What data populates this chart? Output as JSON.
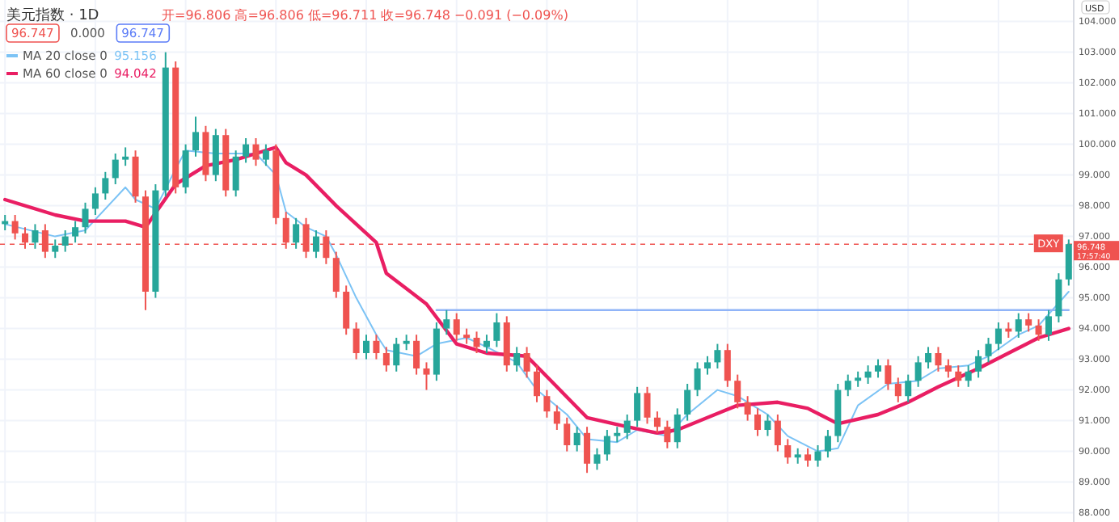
{
  "chart_data": {
    "type": "candlestick",
    "title": "美元指数 · 1D",
    "subtitle": "开=96.806 高=96.806 低=96.711 收=96.748 −0.091 (−0.09%)",
    "categories": [
      null,
      null,
      null,
      null,
      null,
      null,
      null,
      null,
      null,
      null,
      null,
      null,
      null,
      null,
      null,
      null,
      null,
      null,
      null,
      null,
      null,
      null,
      null,
      null,
      null,
      null,
      null,
      null,
      null,
      null,
      null,
      null,
      null,
      null,
      null,
      null,
      null,
      null,
      null,
      null,
      null,
      null,
      null,
      null,
      null,
      null,
      null,
      null,
      null,
      null,
      null,
      null,
      null,
      null,
      null,
      null,
      null,
      null,
      null,
      null,
      null,
      null,
      null,
      null,
      null,
      null,
      null,
      null,
      null,
      null,
      null,
      null,
      null,
      null,
      null,
      null,
      null,
      null,
      null,
      null,
      null,
      null,
      null,
      null,
      null,
      null,
      null,
      null,
      null,
      null,
      null,
      null,
      null,
      null,
      null,
      null,
      null,
      null,
      null,
      null,
      null,
      null,
      null,
      null,
      null,
      null,
      null
    ],
    "ohlc": [
      [
        97.4,
        97.7,
        97.2,
        97.5
      ],
      [
        97.5,
        97.7,
        96.9,
        97.1
      ],
      [
        97.1,
        97.3,
        96.6,
        96.8
      ],
      [
        96.8,
        97.4,
        96.6,
        97.2
      ],
      [
        97.2,
        97.4,
        96.3,
        96.5
      ],
      [
        96.5,
        96.9,
        96.3,
        96.7
      ],
      [
        96.7,
        97.2,
        96.5,
        97.0
      ],
      [
        97.0,
        97.5,
        96.8,
        97.3
      ],
      [
        97.3,
        98.1,
        97.1,
        97.9
      ],
      [
        97.9,
        98.6,
        97.7,
        98.4
      ],
      [
        98.4,
        99.1,
        98.2,
        98.9
      ],
      [
        98.9,
        99.7,
        98.7,
        99.5
      ],
      [
        99.5,
        99.9,
        99.3,
        99.6
      ],
      [
        99.6,
        99.8,
        98.1,
        98.3
      ],
      [
        98.3,
        98.5,
        94.6,
        95.2
      ],
      [
        95.2,
        98.7,
        95.0,
        98.5
      ],
      [
        98.5,
        103.0,
        98.3,
        102.5
      ],
      [
        102.5,
        102.7,
        98.4,
        98.6
      ],
      [
        98.6,
        100.0,
        98.4,
        99.8
      ],
      [
        99.8,
        100.9,
        99.6,
        100.4
      ],
      [
        100.4,
        100.6,
        98.8,
        99.0
      ],
      [
        99.0,
        100.5,
        98.8,
        100.3
      ],
      [
        100.3,
        100.5,
        98.3,
        98.5
      ],
      [
        98.5,
        99.8,
        98.3,
        99.6
      ],
      [
        99.6,
        100.2,
        99.4,
        100.0
      ],
      [
        100.0,
        100.2,
        99.3,
        99.5
      ],
      [
        99.5,
        100.0,
        99.3,
        99.8
      ],
      [
        99.8,
        100.0,
        97.4,
        97.6
      ],
      [
        97.6,
        97.8,
        96.6,
        96.8
      ],
      [
        96.8,
        97.6,
        96.6,
        97.4
      ],
      [
        97.4,
        97.6,
        96.3,
        96.5
      ],
      [
        96.5,
        97.2,
        96.3,
        97.0
      ],
      [
        97.0,
        97.2,
        96.1,
        96.3
      ],
      [
        96.3,
        96.5,
        95.0,
        95.2
      ],
      [
        95.2,
        95.4,
        93.8,
        94.0
      ],
      [
        94.0,
        94.2,
        93.0,
        93.2
      ],
      [
        93.2,
        93.8,
        93.0,
        93.6
      ],
      [
        93.6,
        93.8,
        93.0,
        93.2
      ],
      [
        93.2,
        93.4,
        92.6,
        92.8
      ],
      [
        92.8,
        93.7,
        92.6,
        93.5
      ],
      [
        93.5,
        93.8,
        93.3,
        93.6
      ],
      [
        93.6,
        93.8,
        92.5,
        92.7
      ],
      [
        92.7,
        92.9,
        92.0,
        92.5
      ],
      [
        92.5,
        94.2,
        92.3,
        94.0
      ],
      [
        94.0,
        94.6,
        93.8,
        94.3
      ],
      [
        94.3,
        94.5,
        93.6,
        93.8
      ],
      [
        93.8,
        94.0,
        93.5,
        93.7
      ],
      [
        93.7,
        93.9,
        93.2,
        93.4
      ],
      [
        93.4,
        93.8,
        93.2,
        93.6
      ],
      [
        93.6,
        94.5,
        93.4,
        94.2
      ],
      [
        94.2,
        94.4,
        92.6,
        92.8
      ],
      [
        92.8,
        93.4,
        92.6,
        93.2
      ],
      [
        93.2,
        93.4,
        92.4,
        92.6
      ],
      [
        92.6,
        92.8,
        91.6,
        91.8
      ],
      [
        91.8,
        92.0,
        91.1,
        91.3
      ],
      [
        91.3,
        91.5,
        90.7,
        90.9
      ],
      [
        90.9,
        91.1,
        90.0,
        90.2
      ],
      [
        90.2,
        90.8,
        90.0,
        90.6
      ],
      [
        90.6,
        90.8,
        89.3,
        89.6
      ],
      [
        89.6,
        90.1,
        89.4,
        89.9
      ],
      [
        89.9,
        90.7,
        89.7,
        90.5
      ],
      [
        90.5,
        90.8,
        90.3,
        90.6
      ],
      [
        90.6,
        91.2,
        90.4,
        91.0
      ],
      [
        91.0,
        92.1,
        90.8,
        91.9
      ],
      [
        91.9,
        92.1,
        90.9,
        91.1
      ],
      [
        91.1,
        91.3,
        90.6,
        90.8
      ],
      [
        90.8,
        91.0,
        90.1,
        90.3
      ],
      [
        90.3,
        91.4,
        90.1,
        91.2
      ],
      [
        91.2,
        92.2,
        91.0,
        92.0
      ],
      [
        92.0,
        92.9,
        91.8,
        92.7
      ],
      [
        92.7,
        93.1,
        92.5,
        92.9
      ],
      [
        92.9,
        93.5,
        92.7,
        93.3
      ],
      [
        93.3,
        93.5,
        92.1,
        92.3
      ],
      [
        92.3,
        92.5,
        91.4,
        91.6
      ],
      [
        91.6,
        91.8,
        91.0,
        91.2
      ],
      [
        91.2,
        91.4,
        90.5,
        90.7
      ],
      [
        90.7,
        91.2,
        90.5,
        91.0
      ],
      [
        91.0,
        91.2,
        90.0,
        90.2
      ],
      [
        90.2,
        90.4,
        89.6,
        89.8
      ],
      [
        89.8,
        90.1,
        89.6,
        89.9
      ],
      [
        89.9,
        90.1,
        89.5,
        89.7
      ],
      [
        89.7,
        90.2,
        89.5,
        90.0
      ],
      [
        90.0,
        90.7,
        89.8,
        90.5
      ],
      [
        90.5,
        92.2,
        90.3,
        92.0
      ],
      [
        92.0,
        92.5,
        91.8,
        92.3
      ],
      [
        92.3,
        92.6,
        92.1,
        92.4
      ],
      [
        92.4,
        92.8,
        92.2,
        92.6
      ],
      [
        92.6,
        93.0,
        92.4,
        92.8
      ],
      [
        92.8,
        93.0,
        92.0,
        92.2
      ],
      [
        92.2,
        92.4,
        91.6,
        91.8
      ],
      [
        91.8,
        92.5,
        91.6,
        92.3
      ],
      [
        92.3,
        93.1,
        92.1,
        92.9
      ],
      [
        92.9,
        93.4,
        92.7,
        93.2
      ],
      [
        93.2,
        93.4,
        92.6,
        92.8
      ],
      [
        92.8,
        93.0,
        92.4,
        92.6
      ],
      [
        92.6,
        92.8,
        92.1,
        92.3
      ],
      [
        92.3,
        92.8,
        92.1,
        92.6
      ],
      [
        92.6,
        93.3,
        92.4,
        93.1
      ],
      [
        93.1,
        93.7,
        92.9,
        93.5
      ],
      [
        93.5,
        94.2,
        93.3,
        94.0
      ],
      [
        94.0,
        94.2,
        93.7,
        93.9
      ],
      [
        93.9,
        94.5,
        93.7,
        94.3
      ],
      [
        94.3,
        94.5,
        93.9,
        94.1
      ],
      [
        94.1,
        94.3,
        93.6,
        93.8
      ],
      [
        93.8,
        94.6,
        93.6,
        94.4
      ],
      [
        94.4,
        95.8,
        94.2,
        95.6
      ],
      [
        95.6,
        96.9,
        95.4,
        96.748
      ]
    ],
    "colors": [
      "#26a69a",
      "#ef5350",
      "#ef5350",
      "#26a69a",
      "#ef5350",
      "#26a69a",
      "#26a69a",
      "#26a69a",
      "#26a69a",
      "#26a69a",
      "#26a69a",
      "#26a69a",
      "#26a69a",
      "#ef5350",
      "#ef5350",
      "#26a69a",
      "#26a69a",
      "#ef5350",
      "#26a69a",
      "#26a69a",
      "#ef5350",
      "#26a69a",
      "#ef5350",
      "#26a69a",
      "#26a69a",
      "#ef5350",
      "#26a69a",
      "#ef5350",
      "#ef5350",
      "#26a69a",
      "#ef5350",
      "#26a69a",
      "#ef5350",
      "#ef5350",
      "#ef5350",
      "#ef5350",
      "#26a69a",
      "#ef5350",
      "#ef5350",
      "#26a69a",
      "#26a69a",
      "#ef5350",
      "#ef5350",
      "#26a69a",
      "#26a69a",
      "#ef5350",
      "#ef5350",
      "#ef5350",
      "#26a69a",
      "#26a69a",
      "#ef5350",
      "#26a69a",
      "#ef5350",
      "#ef5350",
      "#ef5350",
      "#ef5350",
      "#ef5350",
      "#26a69a",
      "#ef5350",
      "#26a69a",
      "#26a69a",
      "#26a69a",
      "#26a69a",
      "#26a69a",
      "#ef5350",
      "#ef5350",
      "#ef5350",
      "#26a69a",
      "#26a69a",
      "#26a69a",
      "#26a69a",
      "#26a69a",
      "#ef5350",
      "#ef5350",
      "#ef5350",
      "#ef5350",
      "#26a69a",
      "#ef5350",
      "#ef5350",
      "#26a69a",
      "#ef5350",
      "#26a69a",
      "#26a69a",
      "#26a69a",
      "#26a69a",
      "#26a69a",
      "#26a69a",
      "#26a69a",
      "#ef5350",
      "#ef5350",
      "#26a69a",
      "#26a69a",
      "#26a69a",
      "#ef5350",
      "#ef5350",
      "#ef5350",
      "#26a69a",
      "#26a69a",
      "#26a69a",
      "#26a69a",
      "#ef5350",
      "#26a69a",
      "#ef5350",
      "#ef5350",
      "#26a69a",
      "#26a69a",
      "#26a69a"
    ],
    "series": [
      {
        "type": "line",
        "name": "MA 20 close 0",
        "color": "#7cc3f5",
        "values": [
          97.4,
          null,
          null,
          null,
          null,
          97.0,
          null,
          null,
          97.2,
          null,
          null,
          null,
          98.6,
          98.2,
          null,
          97.9,
          null,
          99.2,
          99.8,
          null,
          null,
          99.7,
          null,
          99.7,
          null,
          99.7,
          null,
          99.0,
          97.8,
          null,
          97.3,
          null,
          97.0,
          96.4,
          null,
          95.0,
          null,
          93.8,
          93.3,
          null,
          null,
          93.1,
          null,
          93.5,
          null,
          null,
          93.7,
          null,
          93.4,
          null,
          null,
          92.9,
          null,
          92.0,
          null,
          null,
          91.2,
          null,
          90.4,
          null,
          null,
          90.3,
          null,
          90.7,
          null,
          null,
          90.5,
          null,
          91.2,
          null,
          null,
          92.0,
          null,
          91.8,
          null,
          null,
          91.2,
          null,
          90.5,
          null,
          null,
          90.0,
          null,
          90.1,
          null,
          91.5,
          null,
          null,
          92.2,
          null,
          null,
          92.3,
          null,
          92.7,
          null,
          null,
          92.8,
          null,
          93.1,
          null,
          null,
          93.8,
          null,
          94.1,
          null,
          null,
          95.2
        ]
      },
      {
        "type": "line",
        "name": "MA 60 close 0",
        "color": "#e91e63",
        "values": [
          98.2,
          null,
          null,
          null,
          null,
          97.7,
          null,
          null,
          97.5,
          null,
          null,
          null,
          97.5,
          null,
          97.3,
          null,
          null,
          98.7,
          null,
          null,
          99.3,
          null,
          null,
          99.5,
          null,
          99.7,
          null,
          99.9,
          99.4,
          null,
          99.0,
          null,
          null,
          98.0,
          null,
          null,
          null,
          96.8,
          95.8,
          null,
          null,
          null,
          94.8,
          null,
          null,
          93.5,
          null,
          null,
          93.2,
          null,
          null,
          null,
          93.1,
          null,
          null,
          92.1,
          null,
          null,
          91.1,
          null,
          null,
          null,
          90.8,
          null,
          null,
          90.6,
          null,
          90.7,
          null,
          null,
          91.1,
          null,
          null,
          91.5,
          null,
          null,
          null,
          91.6,
          null,
          null,
          91.4,
          null,
          null,
          90.9,
          null,
          null,
          null,
          91.2,
          null,
          null,
          91.6,
          null,
          null,
          92.1,
          null,
          null,
          null,
          92.7,
          null,
          null,
          93.2,
          null,
          null,
          93.7,
          null,
          null,
          94.0
        ]
      },
      {
        "type": "line",
        "color": "#90b4f8",
        "values": [
          null,
          null,
          null,
          null,
          null,
          null,
          null,
          null,
          null,
          null,
          null,
          null,
          null,
          null,
          null,
          null,
          null,
          null,
          null,
          null,
          null,
          null,
          null,
          null,
          null,
          null,
          null,
          null,
          null,
          null,
          null,
          null,
          null,
          null,
          null,
          null,
          null,
          null,
          null,
          null,
          null,
          null,
          null,
          94.6,
          null,
          null,
          null,
          null,
          null,
          null,
          null,
          null,
          null,
          null,
          null,
          null,
          null,
          null,
          null,
          null,
          null,
          null,
          null,
          null,
          null,
          null,
          null,
          null,
          null,
          null,
          null,
          null,
          null,
          null,
          null,
          null,
          null,
          null,
          null,
          null,
          null,
          null,
          null,
          null,
          null,
          null,
          null,
          null,
          null,
          null,
          null,
          null,
          null,
          null,
          null,
          null,
          null,
          null,
          null,
          null,
          null,
          null,
          null,
          null,
          null,
          null,
          94.6
        ]
      }
    ],
    "ref_lines": [
      {
        "axis": "y",
        "value": 96.748,
        "color": "#ef5350",
        "line_style": "dashed"
      }
    ],
    "ylim": [
      87.7,
      104.7
    ],
    "yticks": [
      {
        "value": 88,
        "label": "88.000"
      },
      {
        "value": 89,
        "label": "89.000"
      },
      {
        "value": 90,
        "label": "90.000"
      },
      {
        "value": 91,
        "label": "91.000"
      },
      {
        "value": 92,
        "label": "92.000"
      },
      {
        "value": 93,
        "label": "93.000"
      },
      {
        "value": 94,
        "label": "94.000"
      },
      {
        "value": 95,
        "label": "95.000"
      },
      {
        "value": 96,
        "label": "96.000"
      },
      {
        "value": 97,
        "label": "97.000"
      },
      {
        "value": 98,
        "label": "98.000"
      },
      {
        "value": 99,
        "label": "99.000"
      },
      {
        "value": 100,
        "label": "100.000"
      },
      {
        "value": 101,
        "label": "101.000"
      },
      {
        "value": 102,
        "label": "102.000"
      },
      {
        "value": 103,
        "label": "103.000"
      },
      {
        "value": 104,
        "label": "104.000"
      }
    ],
    "tick_labels": "y",
    "grid": true,
    "legend": "top left",
    "annotations": [
      "96.747",
      "0.000",
      "96.747",
      "95.156",
      "94.042",
      "96.748",
      "17:57:40",
      "USD",
      "DXY"
    ]
  }
}
